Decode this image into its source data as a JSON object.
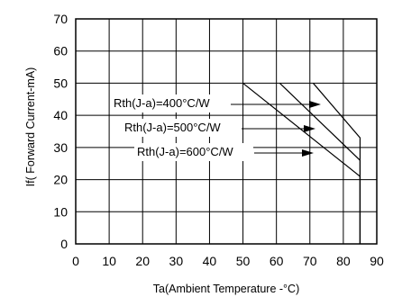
{
  "chart_data": {
    "type": "line",
    "xlabel": "Ta(Ambient Temperature -°C)",
    "ylabel": "If( Forward Current-mA)",
    "xlim": [
      0,
      90
    ],
    "ylim": [
      0,
      70
    ],
    "x_ticks": [
      "0",
      "10",
      "20",
      "30",
      "40",
      "50",
      "60",
      "70",
      "80",
      "90"
    ],
    "y_ticks": [
      "0",
      "10",
      "20",
      "30",
      "40",
      "50",
      "60",
      "70"
    ],
    "grid": true,
    "series": [
      {
        "name": "Rth(J-a)=400°C/W",
        "x": [
          71,
          85,
          85
        ],
        "y": [
          50,
          33,
          0
        ]
      },
      {
        "name": "Rth(J-a)=500°C/W",
        "x": [
          61,
          85,
          85
        ],
        "y": [
          50,
          26,
          0
        ]
      },
      {
        "name": "Rth(J-a)=600°C/W",
        "x": [
          50,
          85,
          85
        ],
        "y": [
          50,
          21,
          0
        ]
      }
    ]
  }
}
